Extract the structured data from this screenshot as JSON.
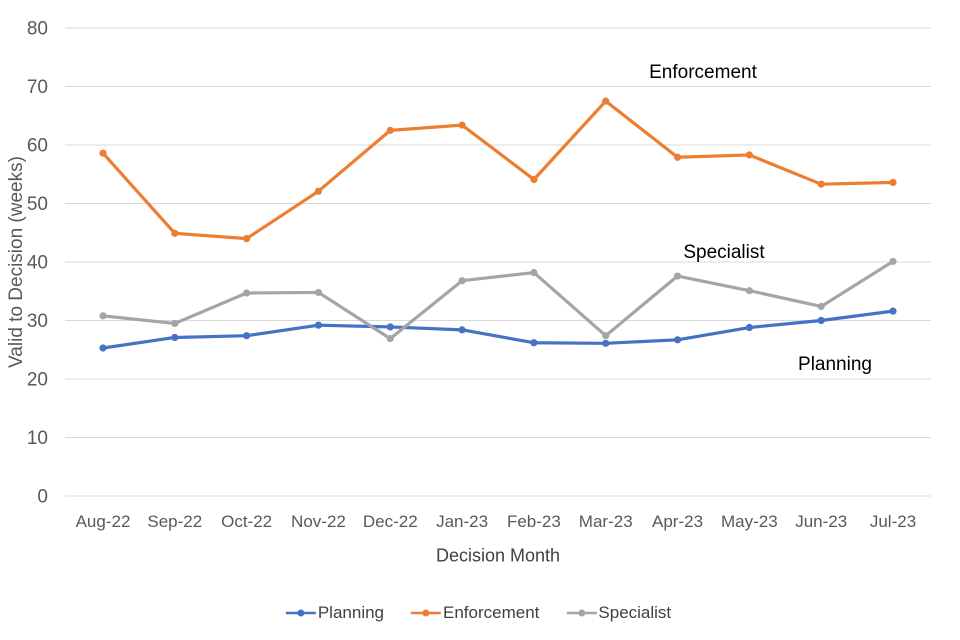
{
  "chart_data": {
    "type": "line",
    "title": "",
    "xlabel": "Decision Month",
    "ylabel": "Valid to Decision (weeks)",
    "categories": [
      "Aug-22",
      "Sep-22",
      "Oct-22",
      "Nov-22",
      "Dec-22",
      "Jan-23",
      "Feb-23",
      "Mar-23",
      "Apr-23",
      "May-23",
      "Jun-23",
      "Jul-23"
    ],
    "series": [
      {
        "name": "Planning",
        "color": "#4472C4",
        "values": [
          25.3,
          27.1,
          27.4,
          29.2,
          28.9,
          28.4,
          26.2,
          26.1,
          26.7,
          28.8,
          30.0,
          31.6
        ]
      },
      {
        "name": "Enforcement",
        "color": "#ED7D31",
        "values": [
          58.6,
          44.9,
          44.0,
          52.1,
          62.5,
          63.4,
          54.1,
          67.5,
          57.9,
          58.3,
          53.3,
          53.6
        ]
      },
      {
        "name": "Specialist",
        "color": "#A5A5A5",
        "values": [
          30.8,
          29.5,
          34.7,
          34.8,
          26.9,
          36.8,
          38.2,
          27.4,
          37.6,
          35.1,
          32.4,
          40.1
        ]
      }
    ],
    "ylim": [
      0,
      80
    ],
    "ytick_step": 10,
    "yticks": [
      0,
      10,
      20,
      30,
      40,
      50,
      60,
      70,
      80
    ],
    "grid": true,
    "legend_position": "bottom",
    "annotations": [
      {
        "text": "Enforcement",
        "x": 703,
        "y": 73
      },
      {
        "text": "Specialist",
        "x": 724,
        "y": 253
      },
      {
        "text": "Planning",
        "x": 835,
        "y": 365
      }
    ],
    "colors": {
      "gridline": "#D9D9D9",
      "tick_text": "#595959",
      "axis_title_text": "#404040",
      "annotation_text": "#000000",
      "legend_text": "#404040"
    }
  }
}
